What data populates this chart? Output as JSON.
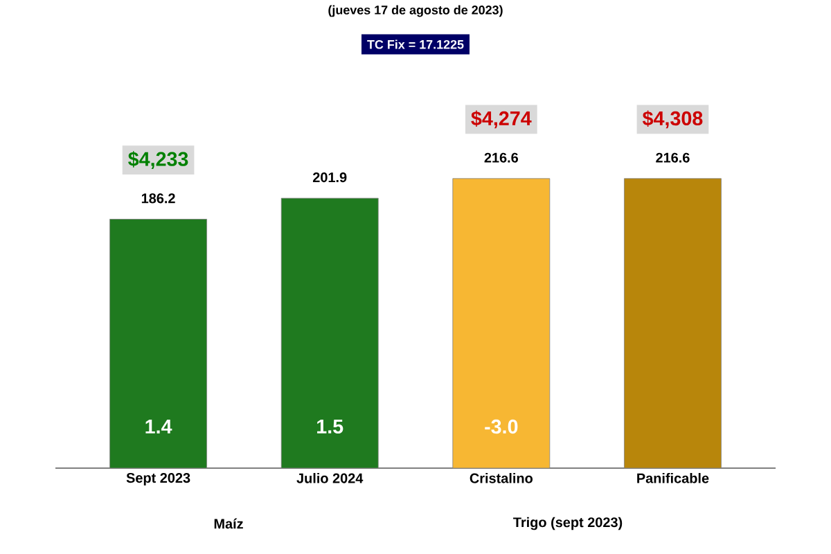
{
  "chart_data": {
    "type": "bar",
    "subtitle": "(jueves 17 de agosto de 2023)",
    "categories": [
      "Sept 2023",
      "Julio 2024",
      "Cristalino",
      "Panificable"
    ],
    "values": [
      186.2,
      201.9,
      216.6,
      216.6
    ],
    "colors": [
      "#1f7a1f",
      "#1f7a1f",
      "#f7b733",
      "#b8860b"
    ],
    "data_labels": true,
    "annotations": [
      "TC Fix = 17.1225",
      "$4,233",
      "$4,274",
      "$4,308",
      "1.4",
      "1.5",
      "-3.0",
      "Maíz",
      "Trigo (sept 2023)"
    ]
  }
}
